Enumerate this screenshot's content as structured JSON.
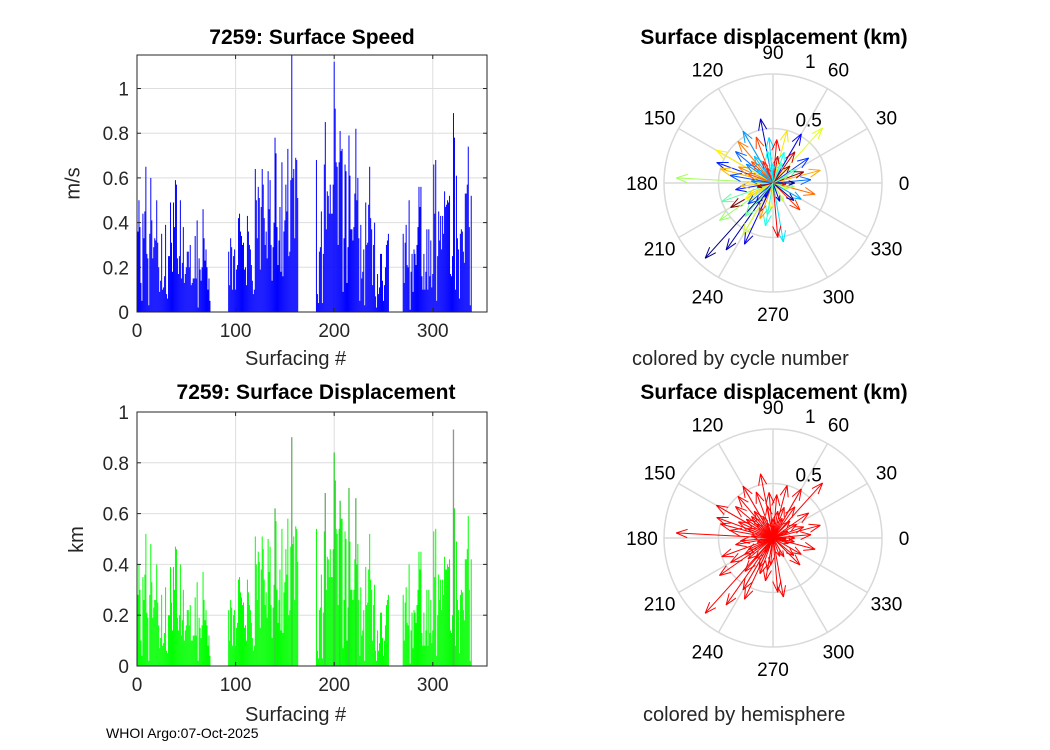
{
  "footer": "WHOI Argo:07-Oct-2025",
  "chart_data": [
    {
      "type": "bar",
      "id": "speed",
      "title": "7259: Surface Speed",
      "xlabel": "Surfacing #",
      "ylabel": "m/s",
      "xlim": [
        0,
        355
      ],
      "ylim": [
        0,
        1.15
      ],
      "xticks": [
        "0",
        "100",
        "200",
        "300"
      ],
      "yticks": [
        "0",
        "0.2",
        "0.4",
        "0.6",
        "0.8",
        "1"
      ],
      "color": "#0000ff",
      "segments": [
        {
          "start": 1,
          "values": [
            0.36,
            0.5,
            0.38,
            0.13,
            0.05,
            0.44,
            0.33,
            0.45,
            0.65,
            0.26,
            0.24,
            0.03,
            0.35,
            0.6,
            0.41,
            0.24,
            0.29,
            0.33,
            0.32,
            0.5,
            0.31,
            0.2,
            0.09,
            0.14,
            0.35,
            0.1,
            0.11,
            0.16,
            0.39,
            0.08,
            0.06,
            0.25,
            0.25,
            0.49,
            0.31,
            0.18,
            0.49,
            0.38,
            0.59,
            0.57,
            0.24,
            0.17,
            0.25,
            0.5,
            0.15,
            0.22,
            0.38,
            0.13,
            0.17,
            0.2,
            0.27,
            0.27,
            0.2,
            0.3,
            0.12,
            0.13,
            0.15,
            0.15,
            0.34,
            0.15,
            0.41,
            0.02,
            0.24,
            0.19,
            0.14,
            0.2,
            0.46,
            0.33,
            0.23,
            0.28,
            0.2,
            0.1,
            0.15,
            0.05
          ]
        },
        {
          "start": 93,
          "values": [
            0.27,
            0.12,
            0.33,
            0.29,
            0.1,
            0.25,
            0.28,
            0.1,
            0.19,
            0.21,
            0.42,
            0.44,
            0.36,
            0.34,
            0.3,
            0.31,
            0.19,
            0.2,
            0.12,
            0.43,
            0.36,
            0.3,
            0.28,
            0.21,
            0.14,
            0.08,
            0.1,
            0.64,
            0.5,
            0.33,
            0.56,
            0.51,
            0.19,
            0.47,
            0.64,
            0.57,
            0.42,
            0.3,
            0.36,
            0.24,
            0.63,
            0.46,
            0.59,
            0.3,
            0.14,
            0.29,
            0.4,
            0.78,
            0.71,
            0.38,
            0.21,
            0.32,
            0.47,
            0.18,
            0.67,
            0.16,
            0.36,
            0.41,
            0.57,
            0.45,
            0.73,
            0.25,
            0.27,
            0.59,
            1.15,
            0.6,
            0.64,
            0.33,
            0.69,
            0.68,
            0.51
          ]
        },
        {
          "start": 182,
          "values": [
            0.68,
            0.08,
            0.04,
            0.27,
            0.29,
            0.45,
            0.04,
            0.26,
            0.66,
            0.85,
            0.37,
            0.54,
            0.52,
            0.44,
            0.57,
            0.44,
            0.44,
            0.57,
            1.12,
            0.91,
            0.67,
            0.65,
            0.3,
            0.67,
            0.81,
            0.72,
            0.73,
            0.09,
            0.33,
            0.66,
            0.63,
            0.13,
            0.29,
            0.79,
            0.61,
            0.37,
            0.37,
            0.32,
            0.38,
            0.53,
            0.82,
            0.5,
            0.6,
            0.33,
            0.05,
            0.39,
            0.15,
            0.18,
            0.28,
            0.03,
            0.49,
            0.3,
            0.31,
            0.48,
            0.65,
            0.42,
            0.37,
            0.12,
            0.3,
            0.4,
            0.07,
            0.02,
            0.17,
            0.08,
            0.11,
            0.26,
            0.26,
            0.14,
            0.05,
            0.12,
            0.2,
            0.3,
            0.32,
            0.35
          ]
        },
        {
          "start": 270,
          "values": [
            0.35,
            0.13,
            0.31,
            0.39,
            0.21,
            0.2,
            0.5,
            0.01,
            0.18,
            0.26,
            0.09,
            0.28,
            0.26,
            0.21,
            0.3,
            0.38,
            0.56,
            0.47,
            0.56,
            0.16,
            0.1,
            0.26,
            0.1,
            0.18,
            0.37,
            0.1,
            0.37,
            0.16,
            0.32,
            0.11,
            0.17,
            0.66,
            0.44,
            0.68,
            0.05,
            0.25,
            0.45,
            0.32,
            0.43,
            0.28,
            0.43,
            0.35,
            0.54,
            0.47,
            0.48,
            0.5,
            0.49,
            0.52,
            0.17,
            0.16,
            0.25,
            0.89,
            0.78,
            0.1,
            0.61,
            0.33,
            0.28,
            0.06,
            0.35,
            0.37,
            0.36,
            0.27,
            0.22,
            0.53,
            0.53,
            0.57,
            0.74,
            0.38,
            0.03,
            0.52
          ]
        }
      ]
    },
    {
      "type": "polar",
      "id": "polar-cycle",
      "title": "Surface displacement (km)",
      "xlabel": "colored by cycle number",
      "rlim": [
        0,
        1
      ],
      "rticks": [
        "0.5",
        "1"
      ],
      "angle_ticks": [
        "0",
        "30",
        "60",
        "90",
        "120",
        "150",
        "180",
        "210",
        "240",
        "270",
        "300",
        "330"
      ],
      "coloring": "cycle"
    },
    {
      "type": "bar",
      "id": "displacement",
      "title": "7259: Surface Displacement",
      "xlabel": "Surfacing #",
      "ylabel": "km",
      "xlim": [
        0,
        355
      ],
      "ylim": [
        0,
        1
      ],
      "xticks": [
        "0",
        "100",
        "200",
        "300"
      ],
      "yticks": [
        "0",
        "0.2",
        "0.4",
        "0.6",
        "0.8",
        "1"
      ],
      "color": "#00ff00",
      "segments": [
        {
          "start": 1,
          "values": [
            0.28,
            0.4,
            0.3,
            0.1,
            0.04,
            0.35,
            0.26,
            0.36,
            0.52,
            0.21,
            0.19,
            0.02,
            0.28,
            0.48,
            0.33,
            0.19,
            0.23,
            0.26,
            0.26,
            0.4,
            0.25,
            0.16,
            0.07,
            0.11,
            0.28,
            0.08,
            0.09,
            0.13,
            0.31,
            0.06,
            0.05,
            0.2,
            0.2,
            0.39,
            0.25,
            0.14,
            0.39,
            0.3,
            0.47,
            0.46,
            0.19,
            0.14,
            0.2,
            0.4,
            0.12,
            0.18,
            0.3,
            0.1,
            0.14,
            0.16,
            0.22,
            0.22,
            0.16,
            0.24,
            0.1,
            0.1,
            0.12,
            0.12,
            0.27,
            0.12,
            0.33,
            0.02,
            0.19,
            0.15,
            0.11,
            0.16,
            0.37,
            0.26,
            0.18,
            0.22,
            0.16,
            0.08,
            0.12,
            0.04
          ]
        },
        {
          "start": 93,
          "values": [
            0.22,
            0.1,
            0.26,
            0.23,
            0.08,
            0.2,
            0.22,
            0.08,
            0.15,
            0.17,
            0.34,
            0.35,
            0.29,
            0.27,
            0.24,
            0.25,
            0.15,
            0.16,
            0.1,
            0.34,
            0.29,
            0.24,
            0.22,
            0.17,
            0.11,
            0.06,
            0.08,
            0.51,
            0.4,
            0.26,
            0.45,
            0.41,
            0.15,
            0.38,
            0.51,
            0.46,
            0.34,
            0.24,
            0.29,
            0.19,
            0.5,
            0.37,
            0.47,
            0.24,
            0.11,
            0.23,
            0.32,
            0.62,
            0.57,
            0.3,
            0.17,
            0.26,
            0.38,
            0.14,
            0.54,
            0.13,
            0.29,
            0.33,
            0.46,
            0.36,
            0.58,
            0.2,
            0.22,
            0.47,
            0.9,
            0.48,
            0.51,
            0.26,
            0.55,
            0.54,
            0.41
          ]
        },
        {
          "start": 182,
          "values": [
            0.54,
            0.06,
            0.03,
            0.22,
            0.23,
            0.36,
            0.03,
            0.21,
            0.53,
            0.68,
            0.3,
            0.43,
            0.42,
            0.35,
            0.46,
            0.35,
            0.35,
            0.46,
            0.84,
            0.73,
            0.54,
            0.52,
            0.24,
            0.54,
            0.65,
            0.58,
            0.58,
            0.07,
            0.26,
            0.53,
            0.5,
            0.1,
            0.23,
            0.7,
            0.49,
            0.3,
            0.3,
            0.26,
            0.3,
            0.42,
            0.66,
            0.4,
            0.48,
            0.26,
            0.04,
            0.31,
            0.12,
            0.14,
            0.22,
            0.02,
            0.39,
            0.24,
            0.25,
            0.38,
            0.52,
            0.34,
            0.3,
            0.1,
            0.24,
            0.32,
            0.06,
            0.02,
            0.14,
            0.06,
            0.09,
            0.21,
            0.21,
            0.11,
            0.04,
            0.1,
            0.16,
            0.24,
            0.26,
            0.28
          ]
        },
        {
          "start": 270,
          "values": [
            0.28,
            0.1,
            0.25,
            0.31,
            0.17,
            0.16,
            0.4,
            0.01,
            0.14,
            0.21,
            0.07,
            0.22,
            0.21,
            0.17,
            0.24,
            0.3,
            0.45,
            0.38,
            0.45,
            0.13,
            0.08,
            0.21,
            0.08,
            0.14,
            0.3,
            0.08,
            0.3,
            0.13,
            0.26,
            0.09,
            0.14,
            0.53,
            0.35,
            0.54,
            0.04,
            0.2,
            0.36,
            0.26,
            0.34,
            0.22,
            0.34,
            0.28,
            0.43,
            0.38,
            0.38,
            0.4,
            0.39,
            0.42,
            0.14,
            0.13,
            0.2,
            0.93,
            0.62,
            0.08,
            0.49,
            0.26,
            0.22,
            0.05,
            0.28,
            0.3,
            0.29,
            0.22,
            0.18,
            0.42,
            0.42,
            0.46,
            0.59,
            0.3,
            0.02,
            0.42
          ]
        }
      ]
    },
    {
      "type": "polar",
      "id": "polar-hemi",
      "title": "Surface displacement (km)",
      "xlabel": "colored by hemisphere",
      "rlim": [
        0,
        1
      ],
      "rticks": [
        "0.5",
        "1"
      ],
      "angle_ticks": [
        "0",
        "30",
        "60",
        "90",
        "120",
        "150",
        "180",
        "210",
        "240",
        "270",
        "300",
        "330"
      ],
      "coloring": "hemisphere",
      "hemisphere_color": "#ff0000"
    }
  ],
  "polar_arrows": [
    [
      228,
      0.93
    ],
    [
      177,
      0.89
    ],
    [
      101,
      0.6
    ],
    [
      48,
      0.68
    ],
    [
      60,
      0.52
    ],
    [
      75,
      0.5
    ],
    [
      35,
      0.4
    ],
    [
      15,
      0.45
    ],
    [
      5,
      0.35
    ],
    [
      -15,
      0.4
    ],
    [
      -30,
      0.3
    ],
    [
      -45,
      0.35
    ],
    [
      -80,
      0.55
    ],
    [
      -85,
      0.5
    ],
    [
      -100,
      0.4
    ],
    [
      -115,
      0.3
    ],
    [
      200,
      0.5
    ],
    [
      210,
      0.45
    ],
    [
      215,
      0.6
    ],
    [
      235,
      0.75
    ],
    [
      240,
      0.55
    ],
    [
      245,
      0.62
    ],
    [
      150,
      0.6
    ],
    [
      160,
      0.55
    ],
    [
      165,
      0.5
    ],
    [
      140,
      0.45
    ],
    [
      130,
      0.5
    ],
    [
      120,
      0.55
    ],
    [
      110,
      0.45
    ],
    [
      95,
      0.42
    ],
    [
      85,
      0.4
    ],
    [
      70,
      0.3
    ],
    [
      55,
      0.35
    ],
    [
      30,
      0.25
    ],
    [
      20,
      0.3
    ],
    [
      -10,
      0.2
    ],
    [
      -40,
      0.25
    ],
    [
      -60,
      0.2
    ],
    [
      -130,
      0.25
    ],
    [
      -150,
      0.3
    ],
    [
      190,
      0.35
    ],
    [
      185,
      0.3
    ],
    [
      170,
      0.4
    ],
    [
      155,
      0.35
    ],
    [
      145,
      0.3
    ],
    [
      135,
      0.28
    ],
    [
      125,
      0.3
    ],
    [
      115,
      0.22
    ],
    [
      100,
      0.3
    ],
    [
      80,
      0.25
    ],
    [
      65,
      0.2
    ],
    [
      45,
      0.22
    ],
    [
      25,
      0.15
    ],
    [
      0,
      0.2
    ],
    [
      -20,
      0.15
    ],
    [
      -70,
      0.18
    ],
    [
      -95,
      0.25
    ],
    [
      -120,
      0.15
    ],
    [
      205,
      0.25
    ],
    [
      220,
      0.3
    ],
    [
      250,
      0.35
    ],
    [
      175,
      0.2
    ],
    [
      160,
      0.25
    ],
    [
      140,
      0.2
    ],
    [
      110,
      0.15
    ],
    [
      90,
      0.18
    ],
    [
      -5,
      0.12
    ],
    [
      260,
      0.3
    ],
    [
      195,
      0.15
    ],
    [
      230,
      0.4
    ]
  ]
}
